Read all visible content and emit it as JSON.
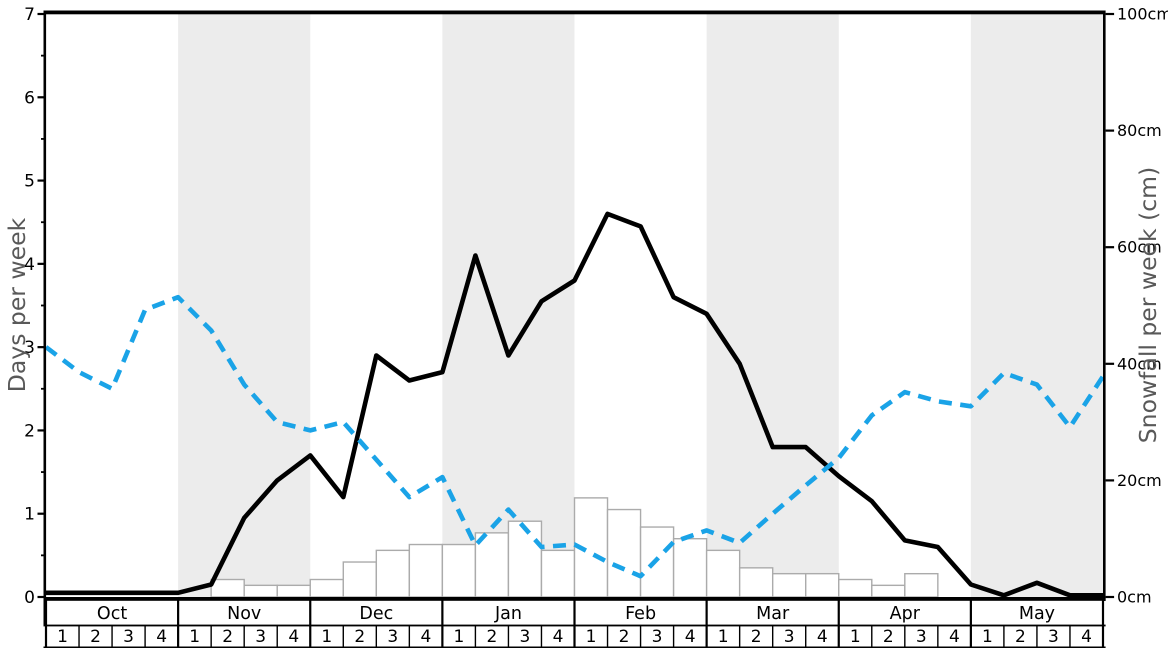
{
  "chart_data": {
    "type": "line",
    "title": "",
    "description": "Weekly snow graph: solid black line = days per week (left axis), blue dashed line = days per week (left axis), white bars = snowfall per week in cm (right axis)",
    "months": [
      "Oct",
      "Nov",
      "Dec",
      "Jan",
      "Feb",
      "Mar",
      "Apr",
      "May"
    ],
    "week_labels": [
      "1",
      "2",
      "3",
      "4"
    ],
    "banded_month_indices": [
      1,
      3,
      5,
      7
    ],
    "x_positions": "value i is plotted at the start of week i (32 weeks, Oct w1 - May w4), plus one final point at the right edge",
    "left_axis": {
      "label": "Days per week",
      "min": 0,
      "max": 7,
      "tick_values": [
        0,
        1,
        2,
        3,
        4,
        5,
        6,
        7
      ],
      "minor_step": 0.5
    },
    "right_axis": {
      "label": "Snowfall per week (cm)",
      "min": 0,
      "max": 100,
      "ticks": [
        {
          "value": 0,
          "label": "0cm"
        },
        {
          "value": 20,
          "label": "20cm"
        },
        {
          "value": 40,
          "label": "40cm"
        },
        {
          "value": 60,
          "label": "60cm"
        },
        {
          "value": 80,
          "label": "80cm"
        },
        {
          "value": 100,
          "label": "100cm"
        }
      ]
    },
    "series": [
      {
        "name": "black-solid-days",
        "style": "solid",
        "color": "#000000",
        "axis": "left",
        "values": [
          0.05,
          0.05,
          0.05,
          0.05,
          0.05,
          0.15,
          0.95,
          1.4,
          1.7,
          1.2,
          2.9,
          2.6,
          2.7,
          4.1,
          2.9,
          3.55,
          3.8,
          4.6,
          4.45,
          3.6,
          3.4,
          2.8,
          1.8,
          1.8,
          1.45,
          1.15,
          0.68,
          0.6,
          0.15,
          0.02,
          0.17,
          0.02,
          0.02
        ]
      },
      {
        "name": "blue-dashed-days",
        "style": "dashed",
        "color": "#1aa3e7",
        "axis": "left",
        "values": [
          3.0,
          2.7,
          2.5,
          3.45,
          3.6,
          3.2,
          2.55,
          2.1,
          2.0,
          2.1,
          1.65,
          1.2,
          1.44,
          0.62,
          1.05,
          0.6,
          0.63,
          0.42,
          0.25,
          0.66,
          0.8,
          0.65,
          1.0,
          1.34,
          1.67,
          2.18,
          2.46,
          2.35,
          2.29,
          2.69,
          2.55,
          2.04,
          2.65
        ]
      }
    ],
    "bars": {
      "name": "snowfall-per-week-cm",
      "axis": "right",
      "fill": "#ffffff",
      "border": "#ababab",
      "values": [
        0,
        0,
        0,
        0,
        0,
        3,
        2,
        2,
        3,
        6,
        8,
        9,
        9,
        11,
        13,
        8,
        17,
        15,
        12,
        10,
        8,
        5,
        4,
        4,
        3,
        2,
        4,
        0,
        0,
        0,
        0,
        0
      ]
    },
    "colors": {
      "band": "#ececec",
      "plot_background": "#ffffff",
      "axis_title": "#595959",
      "tick_text": "#000000",
      "table_border": "#000000",
      "spine": "#000000"
    }
  }
}
